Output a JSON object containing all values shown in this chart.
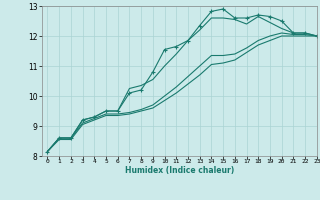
{
  "xlabel": "Humidex (Indice chaleur)",
  "ylabel": "",
  "bg_color": "#cceaea",
  "grid_color": "#aad4d4",
  "line_color": "#1a7a6e",
  "xlim": [
    -0.5,
    23
  ],
  "ylim": [
    8,
    13
  ],
  "yticks": [
    8,
    9,
    10,
    11,
    12,
    13
  ],
  "xticks": [
    0,
    1,
    2,
    3,
    4,
    5,
    6,
    7,
    8,
    9,
    10,
    11,
    12,
    13,
    14,
    15,
    16,
    17,
    18,
    19,
    20,
    21,
    22,
    23
  ],
  "series": [
    {
      "x": [
        0,
        1,
        2,
        3,
        4,
        5,
        6,
        7,
        8,
        9,
        10,
        11,
        12,
        13,
        14,
        15,
        16,
        17,
        18,
        19,
        20,
        21,
        22,
        23
      ],
      "y": [
        8.15,
        8.6,
        8.6,
        9.2,
        9.3,
        9.5,
        9.5,
        10.1,
        10.2,
        10.8,
        11.55,
        11.65,
        11.85,
        12.35,
        12.82,
        12.9,
        12.6,
        12.6,
        12.7,
        12.65,
        12.5,
        12.1,
        12.1,
        12.0
      ],
      "has_markers": true
    },
    {
      "x": [
        0,
        1,
        2,
        3,
        4,
        5,
        6,
        7,
        8,
        9,
        10,
        11,
        12,
        13,
        14,
        15,
        16,
        17,
        18,
        19,
        20,
        21,
        22,
        23
      ],
      "y": [
        8.15,
        8.6,
        8.6,
        9.2,
        9.3,
        9.5,
        9.5,
        10.25,
        10.35,
        10.55,
        11.0,
        11.4,
        11.85,
        12.2,
        12.6,
        12.6,
        12.55,
        12.4,
        12.65,
        12.45,
        12.25,
        12.1,
        12.1,
        12.0
      ],
      "has_markers": false
    },
    {
      "x": [
        0,
        1,
        2,
        3,
        4,
        5,
        6,
        7,
        8,
        9,
        10,
        11,
        12,
        13,
        14,
        15,
        16,
        17,
        18,
        19,
        20,
        21,
        22,
        23
      ],
      "y": [
        8.15,
        8.6,
        8.6,
        9.1,
        9.25,
        9.4,
        9.4,
        9.45,
        9.55,
        9.7,
        10.0,
        10.3,
        10.65,
        11.0,
        11.35,
        11.35,
        11.4,
        11.6,
        11.85,
        12.0,
        12.1,
        12.05,
        12.05,
        12.0
      ],
      "has_markers": false
    },
    {
      "x": [
        0,
        1,
        2,
        3,
        4,
        5,
        6,
        7,
        8,
        9,
        10,
        11,
        12,
        13,
        14,
        15,
        16,
        17,
        18,
        19,
        20,
        21,
        22,
        23
      ],
      "y": [
        8.15,
        8.55,
        8.55,
        9.05,
        9.2,
        9.35,
        9.35,
        9.4,
        9.5,
        9.6,
        9.85,
        10.1,
        10.4,
        10.7,
        11.05,
        11.1,
        11.2,
        11.45,
        11.7,
        11.85,
        12.0,
        12.0,
        12.0,
        12.0
      ],
      "has_markers": false
    }
  ]
}
